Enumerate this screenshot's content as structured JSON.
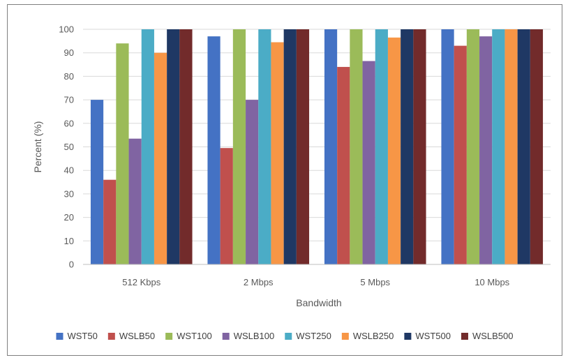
{
  "chart_data": {
    "type": "bar",
    "title": "",
    "xlabel": "Bandwidth",
    "ylabel": "Percent (%)",
    "ylim": [
      0,
      100
    ],
    "yticks": [
      0,
      10,
      20,
      30,
      40,
      50,
      60,
      70,
      80,
      90,
      100
    ],
    "grid": true,
    "legend_position": "bottom",
    "categories": [
      "512 Kbps",
      "2 Mbps",
      "5 Mbps",
      "10 Mbps"
    ],
    "series": [
      {
        "name": "WST50",
        "color": "#4472c4",
        "values": [
          70,
          97,
          100,
          100
        ]
      },
      {
        "name": "WSLB50",
        "color": "#c0504d",
        "values": [
          36,
          49.5,
          84,
          93
        ]
      },
      {
        "name": "WST100",
        "color": "#9bbb59",
        "values": [
          94,
          100,
          100,
          100
        ]
      },
      {
        "name": "WSLB100",
        "color": "#8064a2",
        "values": [
          53.5,
          70,
          86.5,
          97
        ]
      },
      {
        "name": "WST250",
        "color": "#4bacc6",
        "values": [
          100,
          100,
          100,
          100
        ]
      },
      {
        "name": "WSLB250",
        "color": "#f79646",
        "values": [
          90,
          94.5,
          96.5,
          100
        ]
      },
      {
        "name": "WST500",
        "color": "#1f3864",
        "values": [
          100,
          100,
          100,
          100
        ]
      },
      {
        "name": "WSLB500",
        "color": "#722b2b",
        "values": [
          100,
          100,
          100,
          100
        ]
      }
    ]
  }
}
